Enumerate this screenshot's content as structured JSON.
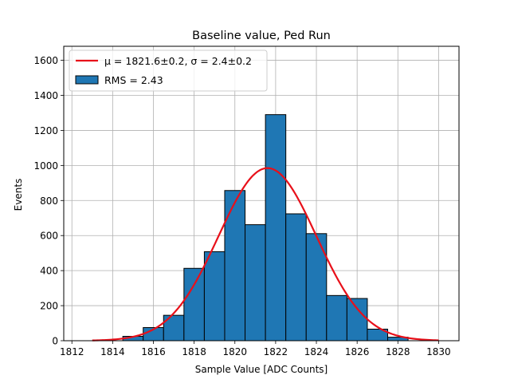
{
  "chart_data": {
    "type": "bar",
    "title": "Baseline value, Ped Run",
    "xlabel": "Sample Value [ADC Counts]",
    "ylabel": "Events",
    "xlim": [
      1811.6,
      1831
    ],
    "ylim": [
      0,
      1680
    ],
    "xticks": [
      1812,
      1814,
      1816,
      1818,
      1820,
      1822,
      1824,
      1826,
      1828,
      1830
    ],
    "yticks": [
      0,
      200,
      400,
      600,
      800,
      1000,
      1200,
      1400,
      1600
    ],
    "grid": true,
    "legend_position": "top-left",
    "histogram": {
      "name": "RMS = 2.43",
      "color": "#1f77b4",
      "edgecolor": "#000000",
      "bin_edges": [
        1814.5,
        1815.5,
        1816.5,
        1817.5,
        1818.5,
        1819.5,
        1820.5,
        1821.5,
        1822.5,
        1823.5,
        1824.5,
        1825.5,
        1826.5,
        1827.5,
        1828.5
      ],
      "counts": [
        25,
        75,
        145,
        413,
        508,
        857,
        662,
        1290,
        724,
        611,
        258,
        241,
        66,
        20
      ]
    },
    "fit": {
      "name": "μ = 1821.6±0.2, σ = 2.4±0.2",
      "color": "#e8101a",
      "mu": 1821.6,
      "sigma": 2.4,
      "amplitude": 985,
      "x_range": [
        1813,
        1830
      ]
    }
  }
}
